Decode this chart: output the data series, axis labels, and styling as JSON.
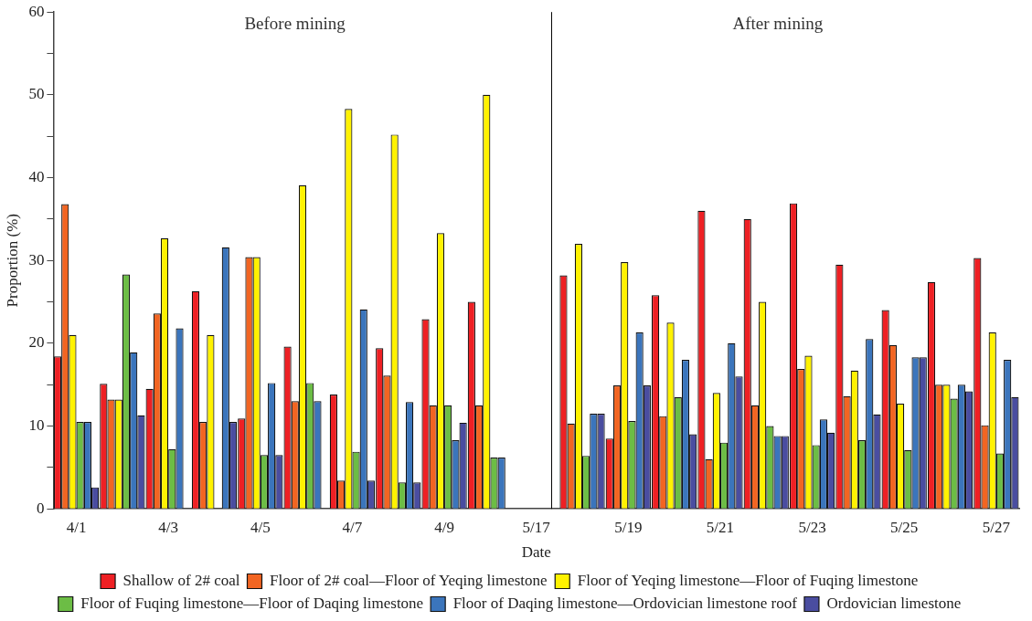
{
  "chart_data": {
    "type": "bar",
    "xlabel": "Date",
    "ylabel": "Proportion (%)",
    "categories": [
      "4/1",
      null,
      "4/3",
      null,
      "4/5",
      null,
      "4/7",
      null,
      "4/9",
      null,
      "5/17",
      null,
      "5/19",
      null,
      "5/21",
      null,
      "5/23",
      null,
      "5/25",
      null,
      "5/27"
    ],
    "series": [
      {
        "name": "Shallow of 2# coal",
        "color": "#ee2024",
        "values": [
          18.4,
          15.1,
          14.5,
          26.3,
          10.9,
          19.6,
          13.8,
          19.4,
          22.9,
          25.0,
          null,
          28.2,
          8.5,
          25.8,
          36.0,
          35.0,
          36.9,
          29.5,
          24.0,
          27.4,
          30.3
        ]
      },
      {
        "name": "Floor of 2# coal—Floor of Yeqing limestone",
        "color": "#f26522",
        "values": [
          36.8,
          13.2,
          23.6,
          10.5,
          30.4,
          13.0,
          3.4,
          16.1,
          12.5,
          12.5,
          null,
          10.3,
          14.9,
          11.2,
          6.0,
          12.5,
          16.9,
          13.6,
          19.8,
          15.0,
          10.1
        ]
      },
      {
        "name": "Floor of Yeqing limestone—Floor of Fuqing limestone",
        "color": "#fff200",
        "values": [
          21.0,
          13.2,
          32.7,
          21.0,
          30.4,
          39.1,
          48.3,
          45.2,
          33.3,
          50.0,
          null,
          32.0,
          29.8,
          22.5,
          14.0,
          25.0,
          18.5,
          16.7,
          12.7,
          15.0,
          21.3
        ]
      },
      {
        "name": "Floor of Fuqing limestone—Floor of Daqing limestone",
        "color": "#6cbd45",
        "values": [
          10.5,
          28.3,
          7.2,
          0,
          6.5,
          15.2,
          6.9,
          3.2,
          12.5,
          6.2,
          null,
          6.4,
          10.6,
          13.5,
          8.0,
          10.0,
          7.7,
          8.3,
          7.1,
          13.3,
          6.7
        ]
      },
      {
        "name": "Floor of Daqing limestone—Ordovician limestone roof",
        "color": "#3b75bc",
        "values": [
          10.5,
          18.9,
          21.8,
          31.6,
          15.2,
          13.0,
          24.1,
          12.9,
          8.3,
          6.2,
          null,
          11.5,
          21.3,
          18.0,
          20.0,
          8.8,
          10.8,
          20.5,
          18.3,
          15.0,
          18.0
        ]
      },
      {
        "name": "Ordovician limestone",
        "color": "#4a4da0",
        "values": [
          2.6,
          11.3,
          0,
          10.5,
          6.5,
          0,
          3.4,
          3.2,
          10.4,
          0,
          null,
          11.5,
          14.9,
          9.0,
          16.0,
          8.8,
          9.2,
          11.4,
          18.3,
          14.2,
          13.5
        ]
      }
    ],
    "ylim": [
      0,
      60
    ],
    "yticks": [
      0,
      {
        "value": 5,
        "label": null
      },
      10,
      {
        "value": 15,
        "label": null
      },
      20,
      {
        "value": 25,
        "label": null
      },
      30,
      {
        "value": 35,
        "label": null
      },
      40,
      {
        "value": 45,
        "label": null
      },
      50,
      {
        "value": 55,
        "label": null
      },
      60
    ],
    "ref_lines": [
      {
        "axis": "x",
        "value": "5/17",
        "color": "#000000"
      }
    ],
    "annotations": [
      "Before mining",
      "After mining"
    ],
    "grid": false,
    "legend": "bottom"
  }
}
